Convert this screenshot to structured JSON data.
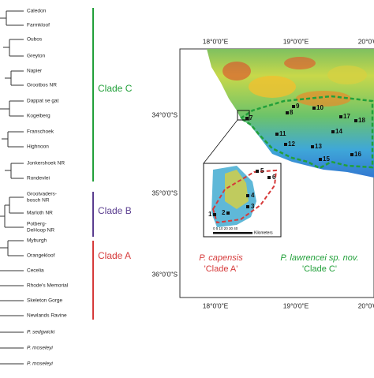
{
  "tree": {
    "taxa": [
      "Caledon",
      "Farmkloof",
      "Oubos",
      "Greyton",
      "Napier",
      "Grootbos NR",
      "Dappat se gat",
      "Kogelberg",
      "Franschoek",
      "Highnoon",
      "Jonkershoek NR",
      "Rondevlei",
      "Grootvaders-",
      "bosch NR",
      "Marloth NR",
      "Potberg-",
      "DeHoop NR",
      "Myburgh",
      "Orangekloof",
      "Cecelia",
      "Rhode's Memorial",
      "Skeleton Gorge",
      "Newlands Ravine",
      "P. sedgwicki",
      "P. moseleyi",
      "P. moseleyi"
    ],
    "clades": [
      "Clade C",
      "Clade B",
      "Clade A"
    ]
  },
  "map": {
    "top_labels": [
      "18°0'0\"E",
      "19°0'0\"E",
      "20°0'0\"E"
    ],
    "bottom_labels": [
      "18°0'0\"E",
      "19°0'0\"E",
      "20°0'0\"E"
    ],
    "left_labels": [
      "34°0'0\"S",
      "35°0'0\"S",
      "36°0'0\"S"
    ],
    "sites": [
      "7",
      "8",
      "9",
      "10",
      "11",
      "12",
      "13",
      "14",
      "15",
      "16",
      "17",
      "18"
    ],
    "inset_sites": [
      "1",
      "2",
      "3",
      "4",
      "5",
      "6"
    ],
    "scale_label": "0 5 10 20 30 40",
    "scale_unit": "Kilometers",
    "legend": {
      "a_species": "P. capensis",
      "a_clade": "'Clade A'",
      "c_species": "P. lawrencei sp. nov.",
      "c_clade": "'Clade C'"
    }
  }
}
